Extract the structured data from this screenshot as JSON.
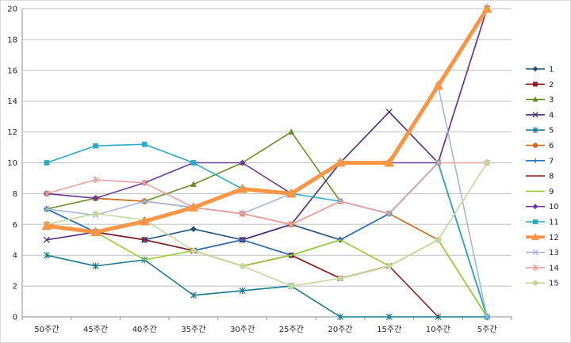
{
  "chart_data": {
    "type": "line",
    "categories": [
      "50주간",
      "45주간",
      "40주간",
      "35주간",
      "30주간",
      "25주간",
      "20주간",
      "15주간",
      "10주간",
      "5주간"
    ],
    "ylim": [
      0,
      20
    ],
    "yticks": [
      0,
      2,
      4,
      6,
      8,
      10,
      12,
      14,
      16,
      18,
      20
    ],
    "grid": "horizontal",
    "legend_position": "right",
    "series": [
      {
        "name": "1",
        "color": "#1F4E79",
        "marker": "diamond",
        "emphasis": false,
        "values": [
          7.0,
          5.5,
          5.0,
          5.7,
          5.0,
          6.0,
          5.0,
          6.7,
          10.0,
          0
        ]
      },
      {
        "name": "2",
        "color": "#8B1A1A",
        "marker": "square",
        "emphasis": false,
        "values": [
          6.0,
          5.5,
          5.0,
          4.3,
          5.0,
          4.0,
          2.5,
          3.3,
          null,
          null
        ]
      },
      {
        "name": "3",
        "color": "#6B8E23",
        "marker": "triangle",
        "emphasis": false,
        "values": [
          7.0,
          7.7,
          7.5,
          8.6,
          10.0,
          12.0,
          7.5,
          null,
          null,
          null
        ]
      },
      {
        "name": "4",
        "color": "#4B2A7A",
        "marker": "x",
        "emphasis": false,
        "values": [
          5.0,
          5.5,
          5.0,
          4.3,
          5.0,
          6.0,
          10.0,
          13.3,
          10.0,
          20.0
        ]
      },
      {
        "name": "5",
        "color": "#1B7A8C",
        "marker": "star",
        "emphasis": false,
        "values": [
          4.0,
          3.3,
          3.7,
          1.4,
          1.7,
          2.0,
          0,
          0,
          0,
          0
        ]
      },
      {
        "name": "6",
        "color": "#D2691E",
        "marker": "circle",
        "emphasis": false,
        "values": [
          8.0,
          7.7,
          7.5,
          7.1,
          6.7,
          6.0,
          7.5,
          6.7,
          5.0,
          0
        ]
      },
      {
        "name": "7",
        "color": "#2E75B6",
        "marker": "plus",
        "emphasis": false,
        "values": [
          7.0,
          5.5,
          5.0,
          4.3,
          5.0,
          4.0,
          5.0,
          6.7,
          10.0,
          0
        ]
      },
      {
        "name": "8",
        "color": "#8B2323",
        "marker": "none",
        "emphasis": false,
        "values": [
          6.0,
          5.5,
          5.0,
          4.3,
          3.3,
          4.0,
          2.5,
          3.3,
          0,
          null
        ]
      },
      {
        "name": "9",
        "color": "#9ACD32",
        "marker": "none",
        "emphasis": false,
        "values": [
          6.0,
          5.5,
          3.7,
          4.3,
          3.3,
          4.0,
          5.0,
          3.3,
          5.0,
          0
        ]
      },
      {
        "name": "10",
        "color": "#6A3D9A",
        "marker": "diamond",
        "emphasis": false,
        "values": [
          8.0,
          7.7,
          8.7,
          10.0,
          10.0,
          8.0,
          10.0,
          10.0,
          10.0,
          20.0
        ]
      },
      {
        "name": "11",
        "color": "#2AA9C9",
        "marker": "square",
        "emphasis": false,
        "values": [
          10.0,
          11.1,
          11.2,
          10.0,
          8.3,
          8.0,
          7.5,
          6.7,
          10.0,
          0
        ]
      },
      {
        "name": "12",
        "color": "#F79646",
        "marker": "triangle",
        "emphasis": true,
        "values": [
          5.9,
          5.5,
          6.2,
          7.1,
          8.3,
          8.0,
          10.0,
          10.0,
          15.0,
          20.0
        ]
      },
      {
        "name": "13",
        "color": "#A5B6D9",
        "marker": "x",
        "emphasis": false,
        "values": [
          7.0,
          6.6,
          7.5,
          7.1,
          6.7,
          8.0,
          10.0,
          10.0,
          15.0,
          0
        ]
      },
      {
        "name": "14",
        "color": "#E8A0A0",
        "marker": "star",
        "emphasis": false,
        "values": [
          8.0,
          8.9,
          8.7,
          7.1,
          6.7,
          6.0,
          7.5,
          6.7,
          10.0,
          10.0
        ]
      },
      {
        "name": "15",
        "color": "#C4D79B",
        "marker": "circle",
        "emphasis": false,
        "values": [
          6.0,
          6.7,
          6.3,
          4.3,
          3.3,
          2.0,
          2.5,
          3.3,
          5.0,
          10.0
        ]
      }
    ]
  }
}
